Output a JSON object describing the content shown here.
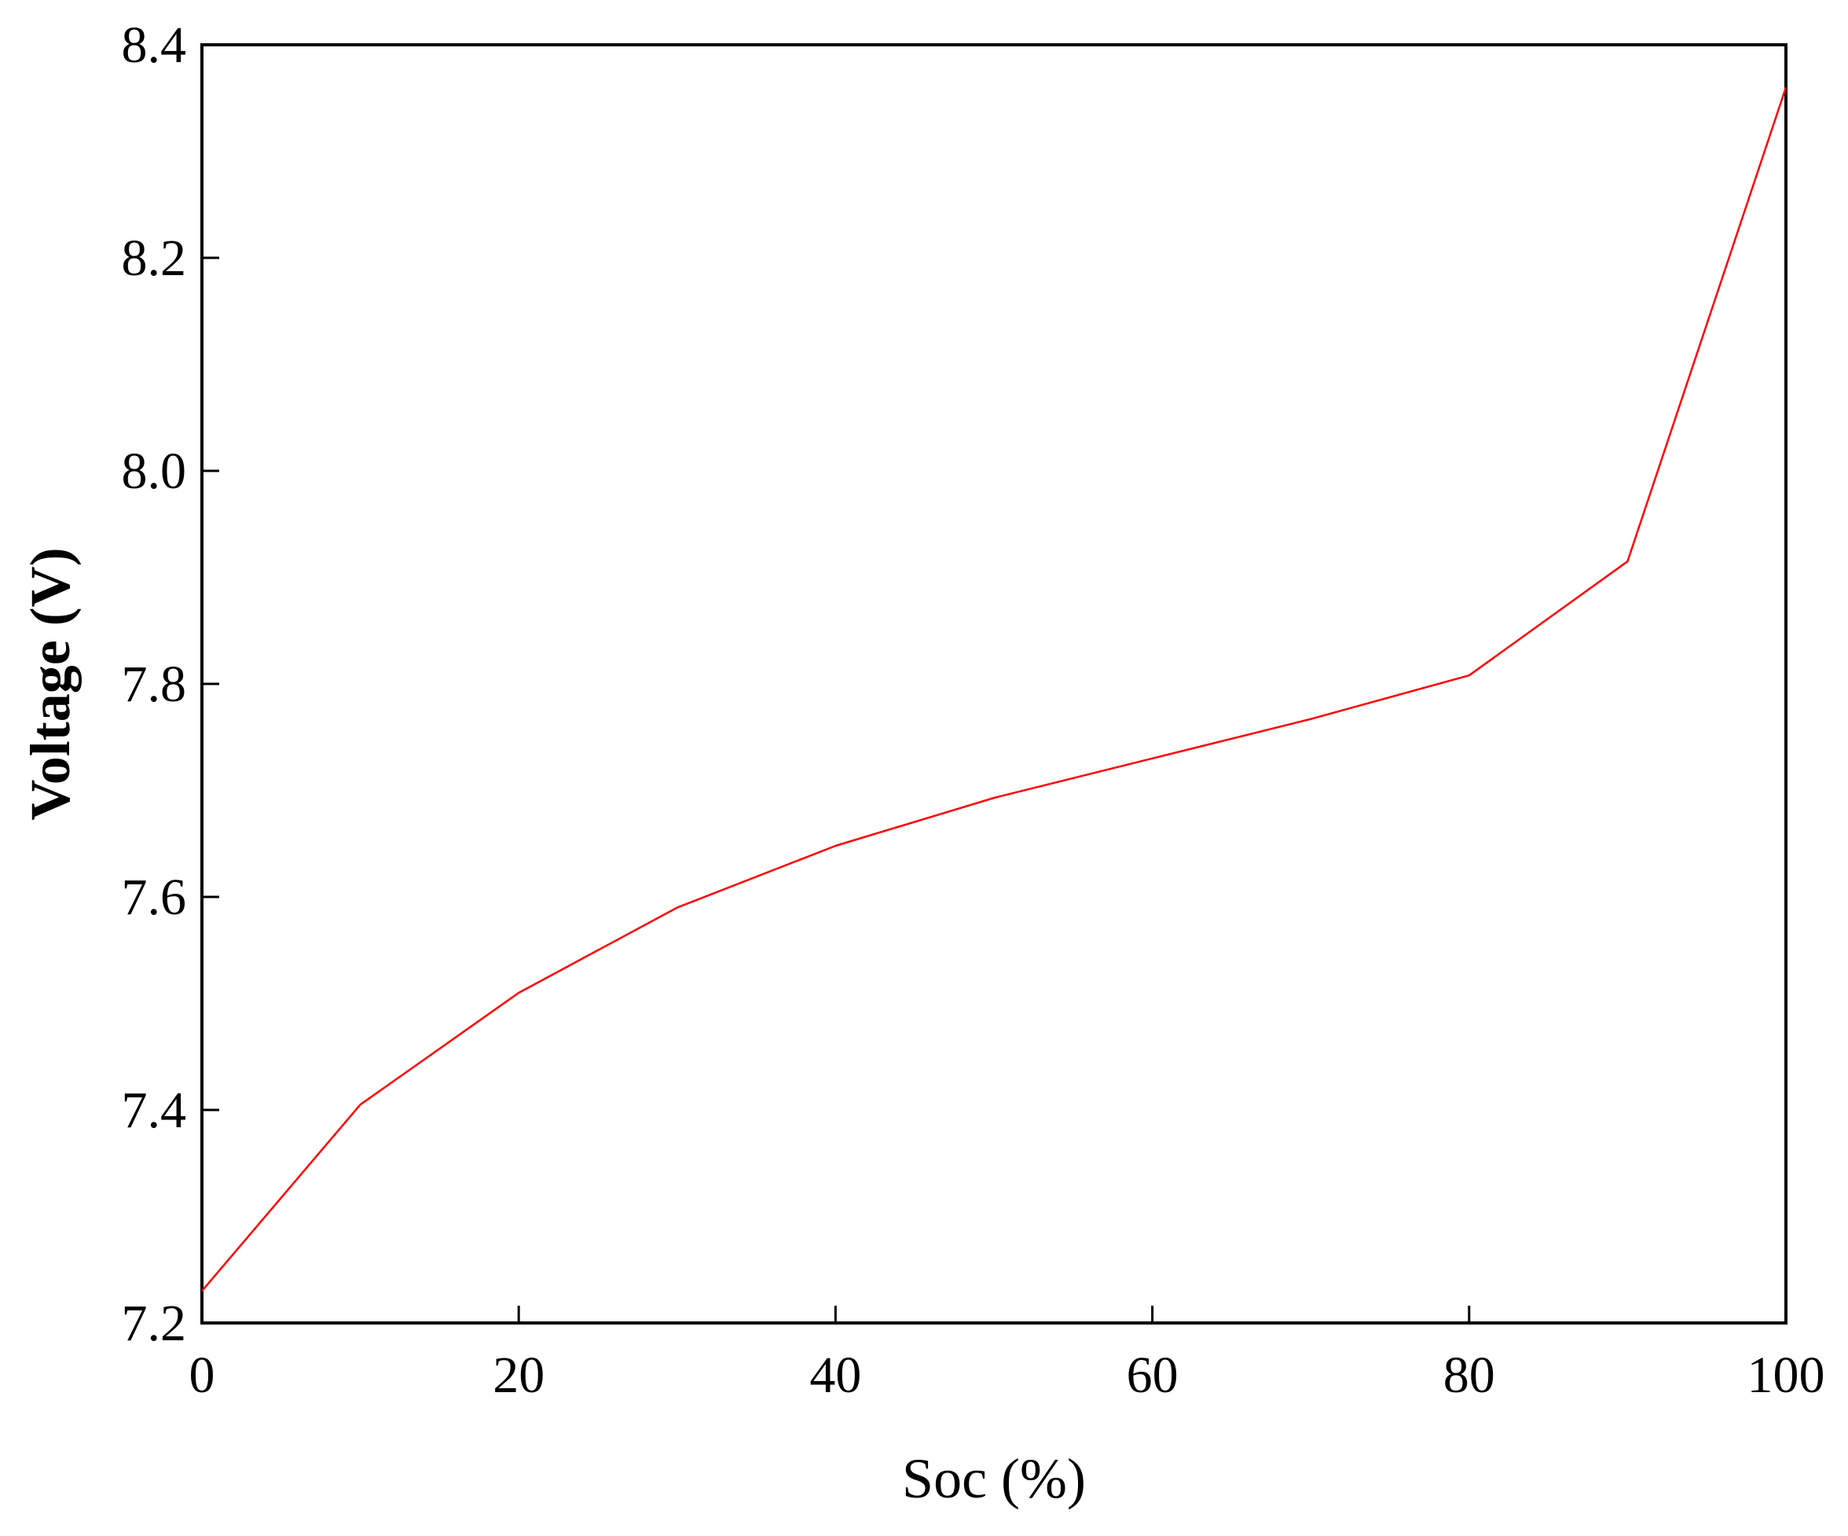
{
  "chart_data": {
    "type": "line",
    "title": "",
    "xlabel": "Soc (%)",
    "ylabel": "Voltage (V)",
    "xlim": [
      0,
      100
    ],
    "ylim": [
      7.2,
      8.4
    ],
    "xticks": [
      0,
      20,
      40,
      60,
      80,
      100
    ],
    "xtick_labels": [
      "0",
      "20",
      "40",
      "60",
      "80",
      "100"
    ],
    "yticks": [
      7.2,
      7.4,
      7.6,
      7.8,
      8.0,
      8.2,
      8.4
    ],
    "ytick_labels": [
      "7.2",
      "7.4",
      "7.6",
      "7.8",
      "8.0",
      "8.2",
      "8.4"
    ],
    "grid": false,
    "legend": "none",
    "series": [
      {
        "color": "#ff0000",
        "x": [
          0,
          10,
          20,
          30,
          40,
          50,
          60,
          70,
          80,
          90,
          100
        ],
        "y": [
          7.23,
          7.405,
          7.51,
          7.59,
          7.648,
          7.693,
          7.73,
          7.767,
          7.808,
          7.915,
          8.36
        ]
      }
    ]
  }
}
